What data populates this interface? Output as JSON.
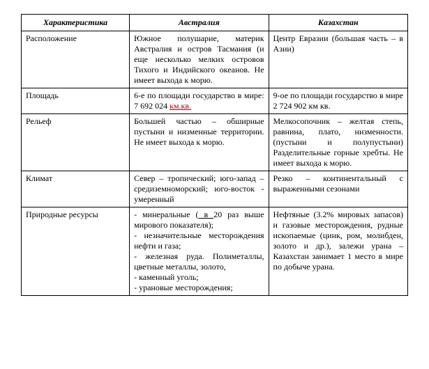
{
  "headers": {
    "char": "Характеристика",
    "aus": "Австралия",
    "kaz": "Казахстан"
  },
  "rows": {
    "r1": {
      "char": "Расположение",
      "aus": "Южное полушарие, материк Австралия и остров Тасмания (и еще несколько мелких островов Тихого и Индийского океанов. Не имеет выхода к морю.",
      "kaz": "Центр Евразии (большая часть – в Азии)"
    },
    "r2": {
      "char": "Площадь",
      "aus_a": "6-е по площади государство в мире: 7 692 024 ",
      "aus_b": "км.кв.",
      "kaz": "9-ое по площади государство в мире 2 724 902 км кв."
    },
    "r3": {
      "char": "Рельеф",
      "aus": "Большей частью – обширные пустыни и низменные территории. Не имеет выхода к морю.",
      "kaz": "Мелкосопочник – желтая степь, равнина, плато, низменности. (пустыни и полупустыни) Разделительные горные хребты. Не имеет выхода к морю."
    },
    "r4": {
      "char": "Климат",
      "aus": "Север – тропический; юго-запад – средиземноморский; юго-восток - умеренный",
      "kaz": "Резко – континентальный с выраженными сезонами"
    },
    "r5": {
      "char": "Природные ресурсы",
      "aus_a": "- минеральные (",
      "aus_u": " в ",
      "aus_b": "20 раз выше мирового показателя);\n- незначительные месторождения нефти и газа;\n- железная руда. Полиметаллы, цветные металлы, золото,\n- каменный уголь;\n- урановые месторождения;",
      "kaz": "Нефтяные (3.2% мировых запасов) и газовые месторождения, рудные ископаемые (цинк, ром, молибден, золото и др.), залежи урана – Казахстан занимает 1 место в мире по добыче урана."
    }
  }
}
